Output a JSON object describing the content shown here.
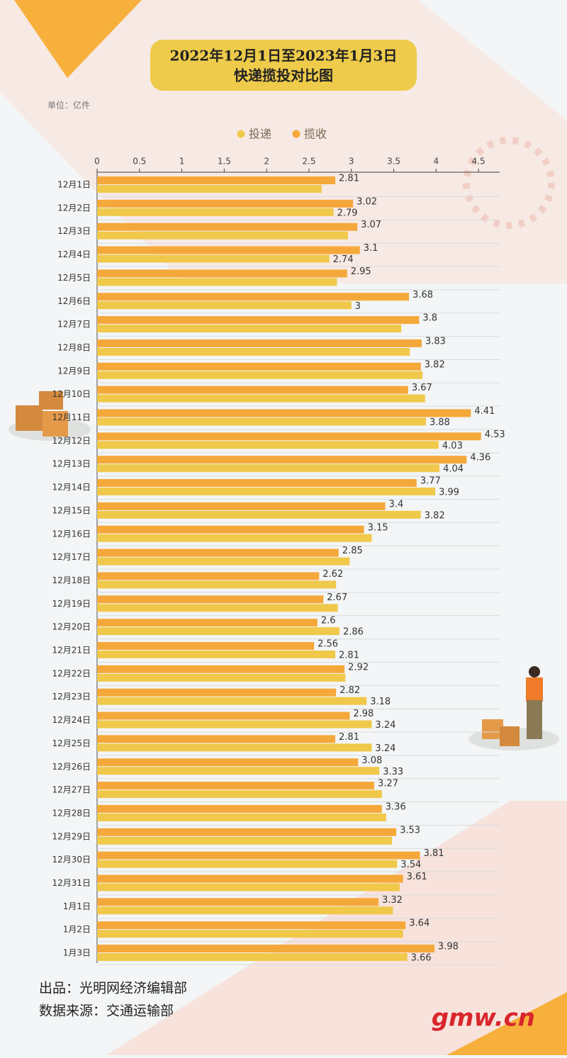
{
  "title_lines": [
    "2022年12月1日至2023年1月3日",
    "快递揽投对比图"
  ],
  "unit": "单位：亿件",
  "footer": {
    "producer": "出品：光明网经济编辑部",
    "source": "数据来源：交通运输部",
    "logo": "gmw.cn"
  },
  "chart_data": {
    "type": "hbar",
    "categories": [
      "12月1日",
      "12月2日",
      "12月3日",
      "12月4日",
      "12月5日",
      "12月6日",
      "12月7日",
      "12月8日",
      "12月9日",
      "12月10日",
      "12月11日",
      "12月12日",
      "12月13日",
      "12月14日",
      "12月15日",
      "12月16日",
      "12月17日",
      "12月18日",
      "12月19日",
      "12月20日",
      "12月21日",
      "12月22日",
      "12月23日",
      "12月24日",
      "12月25日",
      "12月26日",
      "12月27日",
      "12月28日",
      "12月29日",
      "12月30日",
      "12月31日",
      "1月1日",
      "1月2日",
      "1月3日"
    ],
    "series": [
      {
        "name": "投递",
        "color": "#f0c84a",
        "values": [
          2.65,
          2.79,
          2.96,
          2.74,
          2.83,
          3,
          3.59,
          3.69,
          3.84,
          3.87,
          3.88,
          4.03,
          4.04,
          3.99,
          3.82,
          3.24,
          2.98,
          2.82,
          2.84,
          2.86,
          2.81,
          2.93,
          3.18,
          3.24,
          3.24,
          3.33,
          3.36,
          3.41,
          3.48,
          3.54,
          3.57,
          3.49,
          3.61,
          3.66
        ],
        "value_labels": [
          null,
          "2.79",
          null,
          "2.74",
          null,
          "3",
          null,
          null,
          null,
          null,
          "3.88",
          "4.03",
          "4.04",
          "3.99",
          "3.82",
          null,
          null,
          null,
          null,
          "2.86",
          "2.81",
          null,
          "3.18",
          "3.24",
          "3.24",
          "3.33",
          null,
          null,
          null,
          "3.54",
          null,
          null,
          null,
          "3.66"
        ]
      },
      {
        "name": "揽收",
        "color": "#f5a83a",
        "values": [
          2.81,
          3.02,
          3.07,
          3.1,
          2.95,
          3.68,
          3.8,
          3.83,
          3.82,
          3.67,
          4.41,
          4.53,
          4.36,
          3.77,
          3.4,
          3.15,
          2.85,
          2.62,
          2.67,
          2.6,
          2.56,
          2.92,
          2.82,
          2.98,
          2.81,
          3.08,
          3.27,
          3.36,
          3.53,
          3.81,
          3.61,
          3.32,
          3.64,
          3.98
        ]
      }
    ],
    "xlim": [
      0,
      4.75
    ],
    "xticks": [
      0,
      0.5,
      1,
      1.5,
      2,
      2.5,
      3,
      3.5,
      4,
      4.5
    ]
  }
}
